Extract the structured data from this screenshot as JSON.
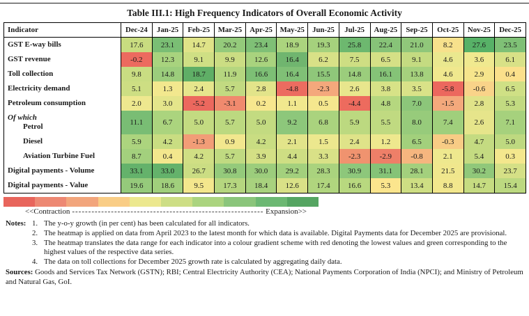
{
  "page": {
    "title": "Table III.1: High Frequency Indicators of Overall Economic Activity"
  },
  "table": {
    "header": {
      "indicator_label": "Indicator",
      "months": [
        "Dec-24",
        "Jan-25",
        "Feb-25",
        "Mar-25",
        "Apr-25",
        "May-25",
        "Jun-25",
        "Jul-25",
        "Aug-25",
        "Sep-25",
        "Oct-25",
        "Nov-25",
        "Dec-25"
      ]
    },
    "rows": [
      {
        "label": "GST E-way bills",
        "indent": false,
        "tall": false,
        "values": [
          "17.6",
          "23.1",
          "14.7",
          "20.2",
          "23.4",
          "18.9",
          "19.3",
          "25.8",
          "22.4",
          "21.0",
          "8.2",
          "27.6",
          "23.5"
        ],
        "colors": [
          "#c8dc80",
          "#7abe74",
          "#dfe388",
          "#94ca7b",
          "#7fc076",
          "#abd47e",
          "#a5d17d",
          "#6db86f",
          "#87c378",
          "#90c77a",
          "#f7e18c",
          "#57b167",
          "#7fc076"
        ]
      },
      {
        "label": "GST revenue",
        "indent": false,
        "tall": false,
        "values": [
          "-0.2",
          "12.3",
          "9.1",
          "9.9",
          "12.6",
          "16.4",
          "6.2",
          "7.5",
          "6.5",
          "9.1",
          "4.6",
          "3.6",
          "6.1"
        ],
        "colors": [
          "#ec6a5f",
          "#a8d37e",
          "#cfdf84",
          "#cbdd83",
          "#a9d37e",
          "#70b56f",
          "#d8e187",
          "#cede83",
          "#d5e086",
          "#c4db81",
          "#eae88f",
          "#f0e98f",
          "#d8e187"
        ]
      },
      {
        "label": "Toll collection",
        "indent": false,
        "tall": false,
        "values": [
          "9.8",
          "14.8",
          "18.7",
          "11.9",
          "16.6",
          "16.4",
          "15.5",
          "14.8",
          "16.1",
          "13.8",
          "4.6",
          "2.9",
          "0.4"
        ],
        "colors": [
          "#c9dd82",
          "#9bcd7c",
          "#5fae66",
          "#b5d67f",
          "#7dbf75",
          "#80c076",
          "#8fc77a",
          "#9bcd7c",
          "#85c377",
          "#a5d17d",
          "#f0e88e",
          "#f6e58c",
          "#fbe08b"
        ]
      },
      {
        "label": "Electricity demand",
        "indent": false,
        "tall": false,
        "values": [
          "5.1",
          "1.3",
          "2.4",
          "5.7",
          "2.8",
          "-4.8",
          "-2.3",
          "2.6",
          "3.8",
          "3.5",
          "-5.8",
          "-0.6",
          "6.5"
        ],
        "colors": [
          "#cdde83",
          "#f2e88e",
          "#e6e68c",
          "#c2da81",
          "#e2e48a",
          "#ec6c60",
          "#f4a87c",
          "#e8e68d",
          "#d7e287",
          "#d9e288",
          "#ec685e",
          "#f9d389",
          "#cfe085"
        ]
      },
      {
        "label": "Petroleum consumption",
        "indent": false,
        "tall": false,
        "values": [
          "2.0",
          "3.0",
          "-5.2",
          "-3.1",
          "0.2",
          "1.1",
          "0.5",
          "-4.4",
          "4.8",
          "7.0",
          "-1.5",
          "2.8",
          "5.3"
        ],
        "colors": [
          "#eee88f",
          "#e4e58b",
          "#ec685e",
          "#f08a6e",
          "#f7e78e",
          "#f1e88e",
          "#f5e78e",
          "#ed6b5e",
          "#b5d77f",
          "#8cc67a",
          "#f4a97c",
          "#e0e389",
          "#c2da81"
        ]
      },
      {
        "label": "Petrol",
        "prefix": "Of which",
        "indent": true,
        "tall": true,
        "values": [
          "11.1",
          "6.7",
          "5.0",
          "5.7",
          "5.0",
          "9.2",
          "6.8",
          "5.9",
          "5.5",
          "8.0",
          "7.4",
          "2.6",
          "7.1"
        ],
        "colors": [
          "#79bd74",
          "#abd47e",
          "#c3db81",
          "#bcd980",
          "#c3db81",
          "#8dc77b",
          "#aad37e",
          "#bcd980",
          "#c0da81",
          "#97cb7b",
          "#a0cf7c",
          "#e6e58b",
          "#a6d17d"
        ]
      },
      {
        "label": "Diesel",
        "indent": true,
        "tall": false,
        "values": [
          "5.9",
          "4.2",
          "-1.3",
          "0.9",
          "4.2",
          "2.1",
          "1.5",
          "2.4",
          "1.2",
          "6.5",
          "-0.3",
          "4.7",
          "5.0"
        ],
        "colors": [
          "#acd47e",
          "#c9dd82",
          "#f29d77",
          "#f2e78e",
          "#c9dd82",
          "#e2e48a",
          "#ece88e",
          "#dfe389",
          "#eee88e",
          "#a2d07c",
          "#f8cc85",
          "#c4db81",
          "#bed980"
        ]
      },
      {
        "label": "Aviation Turbine Fuel",
        "indent": true,
        "tall": false,
        "values": [
          "8.7",
          "0.4",
          "4.2",
          "5.7",
          "3.9",
          "4.4",
          "3.3",
          "-2.3",
          "-2.9",
          "-0.8",
          "2.1",
          "5.4",
          "0.3"
        ],
        "colors": [
          "#a3d07d",
          "#f3e78d",
          "#d0df84",
          "#c0da81",
          "#d4e085",
          "#cede83",
          "#d9e187",
          "#f0936f",
          "#ee7f68",
          "#f6b67f",
          "#eee88e",
          "#c4db81",
          "#f4e78d"
        ]
      },
      {
        "label": "Digital payments - Volume",
        "indent": false,
        "tall": false,
        "values": [
          "33.1",
          "33.0",
          "26.7",
          "30.8",
          "30.0",
          "29.2",
          "28.3",
          "30.9",
          "31.1",
          "28.1",
          "21.5",
          "30.2",
          "23.7"
        ],
        "colors": [
          "#64b26b",
          "#64b26b",
          "#cbdd83",
          "#94ca7b",
          "#9ccd7c",
          "#a3d07d",
          "#aad37e",
          "#8dc77b",
          "#85c377",
          "#a3d07d",
          "#f0e78d",
          "#90c87a",
          "#d5e086"
        ]
      },
      {
        "label": "Digital payments - Value",
        "indent": false,
        "tall": false,
        "values": [
          "19.6",
          "18.6",
          "9.5",
          "17.3",
          "18.4",
          "12.6",
          "17.4",
          "16.6",
          "5.3",
          "13.4",
          "8.8",
          "14.7",
          "15.4"
        ],
        "colors": [
          "#95ca7b",
          "#a0cf7c",
          "#f4e78d",
          "#b5d67f",
          "#a8d27e",
          "#d9e187",
          "#b0d57e",
          "#b8d87f",
          "#fbe58d",
          "#cede83",
          "#f2e78d",
          "#c6dc81",
          "#bcd980"
        ]
      }
    ]
  },
  "legend": {
    "gradient_colors": [
      "#e8655c",
      "#ed8873",
      "#f2a57c",
      "#f9cd86",
      "#ece88f",
      "#cdde85",
      "#abd47f",
      "#8ac57b",
      "#6cb873",
      "#55a562"
    ],
    "left_label": "<<Contraction",
    "dashes": "--------------------------------------------------------------------------------------------------------------------",
    "right_label": "Expansion>>"
  },
  "notes": {
    "heading": "Notes:",
    "items": [
      {
        "num": "1.",
        "text": "The y-o-y growth (in per cent) has been calculated for all indicators."
      },
      {
        "num": "2.",
        "text": "The heatmap is applied on data from April 2023 to the latest month for which data is available. Digital Payments data for December 2025 are provisional."
      },
      {
        "num": "3.",
        "text": "The heatmap translates the data range for each indicator into a colour gradient scheme with red denoting the lowest values and green corresponding to the highest values of the respective data series."
      },
      {
        "num": "4.",
        "text": "The data on toll collections for December 2025 growth rate is calculated by aggregating daily data."
      }
    ],
    "sources_heading": "Sources:",
    "sources_text": "Goods and Services Tax Network (GSTN); RBI; Central Electricity Authority (CEA); National Payments Corporation of India (NPCI); and Ministry of Petroleum and Natural Gas, GoI."
  }
}
